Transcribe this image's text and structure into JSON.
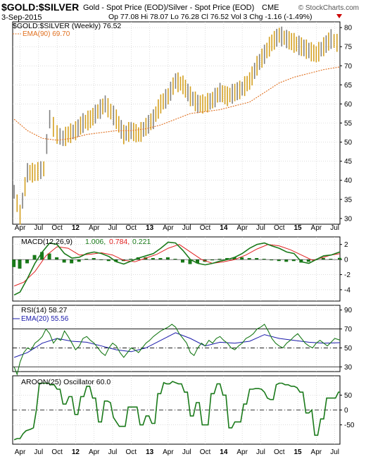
{
  "header": {
    "symbol": "$GOLD:$SILVER",
    "description": "Gold - Spot Price (EOD)/Silver - Spot Price (EOD)",
    "exchange": "CME",
    "date": "3-Sep-2015",
    "ohlc_line": "Op 77.08  Hi 78.07  Lo 76.28  Cl 76.52  Vol 3  Chg -1.16 (-1.49%)",
    "source": "© StockCharts.com",
    "change_color": "#cc0000"
  },
  "colors": {
    "up_bar": "#d4a020",
    "down_bar": "#808080",
    "ema_price": "#e07020",
    "macd_line": "#1a7a1a",
    "signal_line": "#e02020",
    "histogram": "#1a7a1a",
    "rsi_line": "#1a7a1a",
    "rsi_ema": "#1a1aaa",
    "aroon_line": "#1a7a1a",
    "grid": "#c8c8c8"
  },
  "chart_data": [
    {
      "type": "line",
      "panel": "price",
      "legend": [
        "$GOLD:$SILVER (Weekly) 76.52",
        "EMA(90) 69.70"
      ],
      "ylim": [
        28.5,
        81.5
      ],
      "y_ticks": [
        30,
        35,
        40,
        45,
        50,
        55,
        60,
        65,
        70,
        75,
        80
      ],
      "x_ticks": [
        "Apr",
        "Jul",
        "Oct",
        "12",
        "Apr",
        "Jul",
        "Oct",
        "13",
        "Apr",
        "Jul",
        "Oct",
        "14",
        "Apr",
        "Jul",
        "Oct",
        "15",
        "Apr",
        "Jul"
      ],
      "x_tick_positions": [
        0.1,
        0.35,
        0.6,
        0.85,
        1.1,
        1.35,
        1.6,
        1.85,
        2.1,
        2.35,
        2.6,
        2.85,
        3.1,
        3.35,
        3.6,
        3.85,
        4.1,
        4.35
      ],
      "x_range": [
        0,
        4.42
      ],
      "series": [
        {
          "name": "$GOLD:$SILVER (Weekly)",
          "x": [
            0.02,
            0.06,
            0.1,
            0.2,
            0.3,
            0.42,
            0.5,
            0.55,
            0.6,
            0.68,
            0.75,
            0.85,
            0.95,
            1.05,
            1.15,
            1.25,
            1.4,
            1.5,
            1.6,
            1.7,
            1.8,
            1.9,
            2.0,
            2.1,
            2.2,
            2.3,
            2.4,
            2.5,
            2.6,
            2.7,
            2.8,
            2.9,
            3.0,
            3.1,
            3.2,
            3.3,
            3.4,
            3.5,
            3.6,
            3.7,
            3.8,
            3.9,
            4.0,
            4.1,
            4.2,
            4.3,
            4.38,
            4.42
          ],
          "values": [
            37,
            34,
            31,
            42,
            42,
            43,
            56,
            54,
            52,
            51,
            52,
            53,
            55,
            56,
            58,
            60,
            56,
            52,
            53,
            52,
            54,
            56,
            60,
            62,
            66,
            65,
            62,
            60,
            60,
            61,
            63,
            62,
            63,
            64,
            66,
            70,
            73,
            76,
            78,
            77,
            76,
            75,
            74,
            73,
            75,
            77,
            76,
            76.52
          ]
        },
        {
          "name": "EMA(90)",
          "x": [
            0.02,
            0.2,
            0.4,
            0.6,
            0.8,
            1.0,
            1.2,
            1.4,
            1.6,
            1.8,
            2.0,
            2.2,
            2.4,
            2.6,
            2.8,
            3.0,
            3.2,
            3.4,
            3.6,
            3.8,
            4.0,
            4.2,
            4.42
          ],
          "values": [
            56,
            53,
            51,
            50.5,
            51,
            52,
            52.5,
            53,
            53,
            53.5,
            54.5,
            56,
            57.5,
            58,
            58.5,
            59.5,
            60.5,
            63,
            65.5,
            67,
            68,
            69,
            69.7
          ]
        }
      ]
    },
    {
      "type": "line",
      "panel": "macd",
      "legend": [
        "MACD(12,26,9)",
        "1.006,",
        "0.784,",
        "0.221"
      ],
      "ylim": [
        -5.5,
        3
      ],
      "y_ticks": [
        -4,
        -2,
        0,
        2
      ],
      "series": [
        {
          "name": "MACD",
          "x": [
            0.02,
            0.1,
            0.2,
            0.3,
            0.4,
            0.5,
            0.6,
            0.7,
            0.8,
            0.9,
            1.0,
            1.1,
            1.2,
            1.3,
            1.4,
            1.5,
            1.6,
            1.7,
            1.8,
            1.9,
            2.0,
            2.1,
            2.2,
            2.3,
            2.4,
            2.5,
            2.6,
            2.7,
            2.8,
            2.9,
            3.0,
            3.1,
            3.2,
            3.3,
            3.4,
            3.5,
            3.6,
            3.7,
            3.8,
            3.9,
            4.0,
            4.1,
            4.2,
            4.3,
            4.42
          ],
          "values": [
            -4.7,
            -4.3,
            -2.5,
            -0.5,
            1.0,
            2.2,
            2.0,
            0.8,
            0.2,
            0.3,
            0.8,
            1.0,
            0.8,
            0.4,
            -0.3,
            -0.6,
            -0.2,
            0.2,
            0.5,
            0.8,
            1.5,
            2.3,
            2.2,
            1.2,
            0.0,
            -0.5,
            -0.7,
            -0.5,
            -0.2,
            0.0,
            0.3,
            0.8,
            1.5,
            2.0,
            2.2,
            1.8,
            1.5,
            1.0,
            0.8,
            -0.3,
            -0.5,
            0.0,
            0.5,
            0.6,
            1.006
          ]
        },
        {
          "name": "Signal",
          "x": [
            0.02,
            0.15,
            0.3,
            0.45,
            0.6,
            0.75,
            0.9,
            1.05,
            1.2,
            1.35,
            1.5,
            1.65,
            1.8,
            1.95,
            2.1,
            2.25,
            2.4,
            2.55,
            2.7,
            2.85,
            3.0,
            3.15,
            3.3,
            3.45,
            3.6,
            3.75,
            3.9,
            4.05,
            4.2,
            4.3,
            4.42
          ],
          "values": [
            -3.5,
            -3.0,
            -1.6,
            0.5,
            1.7,
            1.5,
            0.6,
            0.7,
            0.9,
            0.6,
            -0.1,
            -0.3,
            0.2,
            0.7,
            1.5,
            2.0,
            1.0,
            0.0,
            -0.5,
            -0.3,
            0.0,
            0.6,
            1.4,
            2.0,
            1.8,
            1.3,
            0.6,
            -0.1,
            0.3,
            0.6,
            0.784
          ]
        },
        {
          "name": "Histogram",
          "x": [
            0.02,
            0.1,
            0.2,
            0.3,
            0.4,
            0.5,
            0.6,
            0.7,
            0.8,
            0.9,
            1.0,
            1.1,
            1.2,
            1.3,
            1.4,
            1.5,
            1.6,
            1.7,
            1.8,
            1.9,
            2.0,
            2.1,
            2.2,
            2.3,
            2.4,
            2.5,
            2.6,
            2.7,
            2.8,
            2.9,
            3.0,
            3.1,
            3.2,
            3.3,
            3.4,
            3.5,
            3.6,
            3.7,
            3.8,
            3.9,
            4.0,
            4.1,
            4.2,
            4.3,
            4.42
          ],
          "values": [
            -1.0,
            -1.2,
            -0.5,
            0.6,
            1.0,
            0.8,
            0.3,
            -0.4,
            -0.5,
            -0.3,
            0.1,
            0.2,
            0.0,
            -0.2,
            -0.3,
            -0.2,
            0.1,
            0.3,
            0.3,
            0.2,
            0.2,
            0.3,
            0.1,
            -0.4,
            -0.6,
            -0.5,
            -0.3,
            -0.1,
            0.1,
            0.2,
            0.3,
            0.3,
            0.2,
            0.2,
            0.1,
            -0.1,
            -0.2,
            -0.3,
            -0.2,
            -0.4,
            -0.3,
            0.0,
            0.2,
            0.1,
            0.221
          ]
        }
      ]
    },
    {
      "type": "line",
      "panel": "rsi",
      "legend": [
        "RSI(14) 58.27",
        "EMA(20) 55.56"
      ],
      "ylim": [
        25,
        95
      ],
      "y_ticks": [
        30,
        50,
        70,
        90
      ],
      "reference_lines": [
        70,
        50,
        30
      ],
      "series": [
        {
          "name": "RSI(14)",
          "x": [
            0.02,
            0.06,
            0.1,
            0.15,
            0.2,
            0.25,
            0.3,
            0.35,
            0.4,
            0.45,
            0.5,
            0.55,
            0.6,
            0.65,
            0.7,
            0.75,
            0.8,
            0.85,
            0.9,
            0.95,
            1.0,
            1.05,
            1.1,
            1.15,
            1.2,
            1.25,
            1.3,
            1.35,
            1.4,
            1.45,
            1.5,
            1.55,
            1.6,
            1.65,
            1.7,
            1.75,
            1.8,
            1.85,
            1.9,
            1.95,
            2.0,
            2.05,
            2.1,
            2.15,
            2.2,
            2.25,
            2.3,
            2.35,
            2.4,
            2.45,
            2.5,
            2.55,
            2.6,
            2.65,
            2.7,
            2.75,
            2.8,
            2.85,
            2.9,
            2.95,
            3.0,
            3.05,
            3.1,
            3.15,
            3.2,
            3.25,
            3.3,
            3.35,
            3.4,
            3.45,
            3.5,
            3.55,
            3.6,
            3.65,
            3.7,
            3.75,
            3.8,
            3.85,
            3.9,
            3.95,
            4.0,
            4.05,
            4.1,
            4.15,
            4.2,
            4.25,
            4.3,
            4.35,
            4.42
          ],
          "values": [
            30,
            22,
            35,
            45,
            50,
            48,
            55,
            58,
            62,
            70,
            65,
            55,
            60,
            58,
            68,
            62,
            55,
            48,
            52,
            60,
            62,
            58,
            55,
            50,
            45,
            42,
            50,
            55,
            52,
            45,
            40,
            45,
            50,
            48,
            45,
            50,
            55,
            58,
            62,
            65,
            68,
            70,
            72,
            75,
            72,
            65,
            60,
            55,
            45,
            42,
            50,
            55,
            52,
            58,
            55,
            60,
            62,
            58,
            55,
            50,
            48,
            52,
            55,
            60,
            62,
            65,
            70,
            72,
            75,
            68,
            60,
            55,
            52,
            50,
            55,
            58,
            62,
            65,
            60,
            55,
            52,
            50,
            55,
            58,
            55,
            52,
            56,
            60,
            58.27
          ]
        },
        {
          "name": "EMA(20)",
          "x": [
            0.02,
            0.2,
            0.4,
            0.6,
            0.8,
            1.0,
            1.2,
            1.4,
            1.6,
            1.8,
            2.0,
            2.2,
            2.4,
            2.6,
            2.8,
            3.0,
            3.2,
            3.4,
            3.6,
            3.8,
            4.0,
            4.2,
            4.42
          ],
          "values": [
            40,
            45,
            55,
            60,
            57,
            56,
            52,
            48,
            46,
            50,
            58,
            66,
            60,
            52,
            56,
            55,
            57,
            64,
            60,
            58,
            56,
            55,
            55.56
          ]
        }
      ]
    },
    {
      "type": "line",
      "panel": "aroon",
      "legend": [
        "AROON(25) Oscillator 60.0"
      ],
      "ylim": [
        -115,
        115
      ],
      "y_ticks": [
        -50,
        0,
        50
      ],
      "reference_lines": [
        0
      ],
      "series": [
        {
          "name": "AROON(25) Oscillator",
          "x": [
            0.02,
            0.06,
            0.1,
            0.14,
            0.18,
            0.24,
            0.28,
            0.32,
            0.36,
            0.4,
            0.44,
            0.48,
            0.52,
            0.56,
            0.6,
            0.64,
            0.68,
            0.72,
            0.76,
            0.8,
            0.84,
            0.88,
            0.92,
            0.96,
            1.0,
            1.04,
            1.08,
            1.12,
            1.16,
            1.2,
            1.24,
            1.28,
            1.32,
            1.36,
            1.4,
            1.44,
            1.48,
            1.52,
            1.56,
            1.6,
            1.64,
            1.68,
            1.72,
            1.76,
            1.8,
            1.84,
            1.88,
            1.92,
            1.96,
            2.0,
            2.04,
            2.08,
            2.12,
            2.16,
            2.2,
            2.24,
            2.28,
            2.32,
            2.36,
            2.4,
            2.44,
            2.48,
            2.52,
            2.56,
            2.6,
            2.64,
            2.68,
            2.72,
            2.76,
            2.8,
            2.84,
            2.88,
            2.92,
            2.96,
            3.0,
            3.04,
            3.08,
            3.12,
            3.16,
            3.2,
            3.24,
            3.28,
            3.32,
            3.36,
            3.4,
            3.44,
            3.48,
            3.52,
            3.56,
            3.6,
            3.64,
            3.68,
            3.72,
            3.76,
            3.8,
            3.84,
            3.88,
            3.92,
            3.96,
            4.0,
            4.04,
            4.08,
            4.12,
            4.16,
            4.2,
            4.24,
            4.28,
            4.32,
            4.36,
            4.4,
            4.42
          ],
          "values": [
            -100,
            -96,
            -96,
            -80,
            -70,
            -65,
            -60,
            0,
            90,
            90,
            90,
            90,
            85,
            85,
            70,
            70,
            20,
            20,
            45,
            45,
            -15,
            -15,
            45,
            45,
            80,
            80,
            40,
            40,
            -40,
            -40,
            30,
            30,
            25,
            -25,
            -40,
            -55,
            -55,
            -55,
            10,
            10,
            10,
            10,
            -50,
            -50,
            -20,
            -20,
            -45,
            -45,
            55,
            55,
            92,
            88,
            88,
            96,
            92,
            88,
            88,
            60,
            60,
            -20,
            -20,
            25,
            25,
            -50,
            -50,
            -50,
            55,
            55,
            88,
            88,
            50,
            50,
            -60,
            -60,
            -40,
            -40,
            -40,
            20,
            20,
            70,
            70,
            72,
            72,
            70,
            60,
            40,
            35,
            35,
            85,
            90,
            90,
            85,
            85,
            80,
            80,
            75,
            60,
            60,
            -10,
            -10,
            0,
            -85,
            -85,
            -30,
            -30,
            40,
            40,
            40,
            40,
            60,
            60.0
          ]
        }
      ]
    }
  ]
}
